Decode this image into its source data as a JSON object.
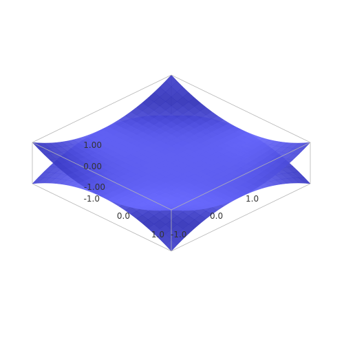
{
  "chart_data": {
    "type": "surface-3d",
    "title": "",
    "xlabel": "",
    "ylabel": "",
    "zlabel": "",
    "x_range": [
      -1.0,
      1.0
    ],
    "y_range": [
      -1.0,
      1.0
    ],
    "z_range": [
      -1.0,
      1.0
    ],
    "x_ticks": [
      "-1.0",
      "0.0",
      "1.0"
    ],
    "y_ticks": [
      "-1.0",
      "0.0",
      "1.0"
    ],
    "z_ticks": [
      "-1.00",
      "0.00",
      "1.00"
    ],
    "surfaces": [
      {
        "kind": "upper-sheet",
        "corner_z": 1.0,
        "edge_mid_z": 0.0,
        "center_z": 0.0
      },
      {
        "kind": "lower-sheet",
        "corner_z": -1.0,
        "edge_mid_z": 0.0,
        "center_z": 0.0
      }
    ],
    "colors": {
      "surface": "#6a6aff",
      "surface_dark": "#1c1ca0",
      "box": "#b4b4b4",
      "tick_text": "#333333"
    }
  }
}
